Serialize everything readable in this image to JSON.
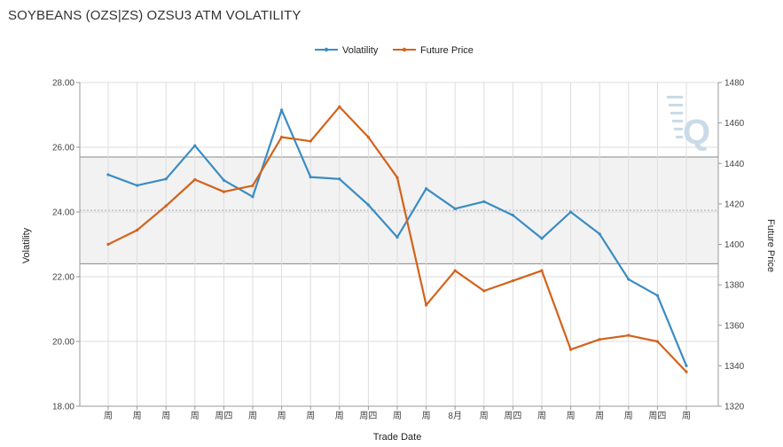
{
  "page": {
    "title": "SOYBEANS (OZS|ZS) OZSU3 ATM VOLATILITY"
  },
  "colors": {
    "volatility": "#3a8cc3",
    "future_price": "#d4621c",
    "band_fill": "#f2f2f2",
    "band_line": "#888888",
    "mean_line": "#aaaaaa",
    "grid": "#dddddd",
    "watermark": "#c9dbe8"
  },
  "watermark": {
    "icon": "q-logo-icon",
    "letter": "Q"
  },
  "chart_data": {
    "type": "line",
    "categories": [
      "周",
      "周",
      "周",
      "周",
      "周四",
      "周",
      "周",
      "周",
      "周",
      "周四",
      "周",
      "周",
      "8月",
      "周",
      "周四",
      "周",
      "周",
      "周",
      "周",
      "周四",
      "周"
    ],
    "xlabel": "Trade Date",
    "ylabel_left": "Volatility",
    "ylabel_right": "Future Price",
    "ylim_left": [
      18,
      28
    ],
    "ylim_right": [
      1320,
      1480
    ],
    "yticks_left": [
      "18.00",
      "20.00",
      "22.00",
      "24.00",
      "26.00",
      "28.00"
    ],
    "yticks_right": [
      "1320",
      "1340",
      "1360",
      "1380",
      "1400",
      "1420",
      "1440",
      "1460",
      "1480"
    ],
    "legend_position": "top-center",
    "band": {
      "upper": 25.7,
      "mean": 24.05,
      "lower": 22.4
    },
    "series": [
      {
        "name": "Volatility",
        "axis": "left",
        "values": [
          25.15,
          24.82,
          25.02,
          26.05,
          24.98,
          24.47,
          27.15,
          25.08,
          25.02,
          24.22,
          23.22,
          24.72,
          24.1,
          24.32,
          23.9,
          23.18,
          24.0,
          23.32,
          21.92,
          21.42,
          19.25
        ]
      },
      {
        "name": "Future Price",
        "axis": "right",
        "values": [
          1400,
          1407,
          1419,
          1432,
          1426,
          1429,
          1453,
          1451,
          1468,
          1453,
          1433,
          1370,
          1387,
          1377,
          1382,
          1387,
          1348,
          1353,
          1355,
          1352,
          1337
        ]
      }
    ]
  }
}
